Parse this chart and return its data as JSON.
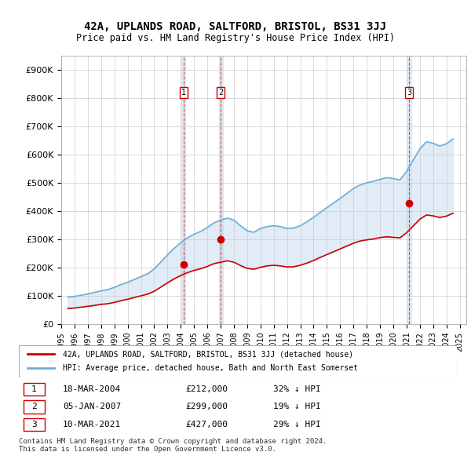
{
  "title": "42A, UPLANDS ROAD, SALTFORD, BRISTOL, BS31 3JJ",
  "subtitle": "Price paid vs. HM Land Registry's House Price Index (HPI)",
  "ylabel_ticks": [
    "£0",
    "£100K",
    "£200K",
    "£300K",
    "£400K",
    "£500K",
    "£600K",
    "£700K",
    "£800K",
    "£900K"
  ],
  "ylim": [
    0,
    950000
  ],
  "xlim_start": 1995.0,
  "xlim_end": 2025.5,
  "purchases": [
    {
      "num": 1,
      "date_label": "18-MAR-2004",
      "year": 2004.21,
      "price": 212000,
      "hpi_pct": "32% ↓ HPI"
    },
    {
      "num": 2,
      "date_label": "05-JAN-2007",
      "year": 2007.01,
      "price": 299000,
      "hpi_pct": "19% ↓ HPI"
    },
    {
      "num": 3,
      "date_label": "10-MAR-2021",
      "year": 2021.19,
      "price": 427000,
      "hpi_pct": "29% ↓ HPI"
    }
  ],
  "hpi_color": "#6baed6",
  "price_color": "#cc0000",
  "sale_dot_color": "#cc0000",
  "vline_color": "#cc0000",
  "shade_color": "#c6dbef",
  "background_color": "#ffffff",
  "grid_color": "#cccccc",
  "legend_label_price": "42A, UPLANDS ROAD, SALTFORD, BRISTOL, BS31 3JJ (detached house)",
  "legend_label_hpi": "HPI: Average price, detached house, Bath and North East Somerset",
  "footnote": "Contains HM Land Registry data © Crown copyright and database right 2024.\nThis data is licensed under the Open Government Licence v3.0.",
  "hpi_data": {
    "years": [
      1995.5,
      1996.0,
      1996.5,
      1997.0,
      1997.5,
      1998.0,
      1998.5,
      1999.0,
      1999.5,
      2000.0,
      2000.5,
      2001.0,
      2001.5,
      2002.0,
      2002.5,
      2003.0,
      2003.5,
      2004.0,
      2004.5,
      2005.0,
      2005.5,
      2006.0,
      2006.5,
      2007.0,
      2007.5,
      2008.0,
      2008.5,
      2009.0,
      2009.5,
      2010.0,
      2010.5,
      2011.0,
      2011.5,
      2012.0,
      2012.5,
      2013.0,
      2013.5,
      2014.0,
      2014.5,
      2015.0,
      2015.5,
      2016.0,
      2016.5,
      2017.0,
      2017.5,
      2018.0,
      2018.5,
      2019.0,
      2019.5,
      2020.0,
      2020.5,
      2021.0,
      2021.5,
      2022.0,
      2022.5,
      2023.0,
      2023.5,
      2024.0,
      2024.5
    ],
    "values": [
      95000,
      98000,
      102000,
      107000,
      112000,
      118000,
      122000,
      130000,
      140000,
      148000,
      158000,
      168000,
      178000,
      195000,
      220000,
      245000,
      268000,
      288000,
      305000,
      318000,
      328000,
      342000,
      358000,
      368000,
      375000,
      368000,
      348000,
      330000,
      325000,
      338000,
      345000,
      348000,
      345000,
      338000,
      340000,
      348000,
      362000,
      378000,
      395000,
      412000,
      428000,
      445000,
      462000,
      480000,
      492000,
      500000,
      505000,
      512000,
      518000,
      515000,
      510000,
      540000,
      580000,
      620000,
      645000,
      640000,
      630000,
      638000,
      655000
    ]
  },
  "price_data": {
    "years": [
      1995.5,
      1996.0,
      1996.5,
      1997.0,
      1997.5,
      1998.0,
      1998.5,
      1999.0,
      1999.5,
      2000.0,
      2000.5,
      2001.0,
      2001.5,
      2002.0,
      2002.5,
      2003.0,
      2003.5,
      2004.0,
      2004.5,
      2005.0,
      2005.5,
      2006.0,
      2006.5,
      2007.0,
      2007.5,
      2008.0,
      2008.5,
      2009.0,
      2009.5,
      2010.0,
      2010.5,
      2011.0,
      2011.5,
      2012.0,
      2012.5,
      2013.0,
      2013.5,
      2014.0,
      2014.5,
      2015.0,
      2015.5,
      2016.0,
      2016.5,
      2017.0,
      2017.5,
      2018.0,
      2018.5,
      2019.0,
      2019.5,
      2020.0,
      2020.5,
      2021.0,
      2021.5,
      2022.0,
      2022.5,
      2023.0,
      2023.5,
      2024.0,
      2024.5
    ],
    "values": [
      55000,
      57000,
      60000,
      63000,
      66000,
      70000,
      72000,
      77000,
      83000,
      88000,
      94000,
      100000,
      106000,
      116000,
      131000,
      146000,
      160000,
      172000,
      182000,
      190000,
      196000,
      204000,
      214000,
      219000,
      224000,
      219000,
      207000,
      197000,
      194000,
      201000,
      206000,
      208000,
      206000,
      202000,
      203000,
      208000,
      216000,
      225000,
      236000,
      246000,
      256000,
      266000,
      276000,
      286000,
      294000,
      298000,
      301000,
      306000,
      309000,
      307000,
      305000,
      323000,
      347000,
      371000,
      386000,
      383000,
      377000,
      382000,
      392000
    ]
  }
}
